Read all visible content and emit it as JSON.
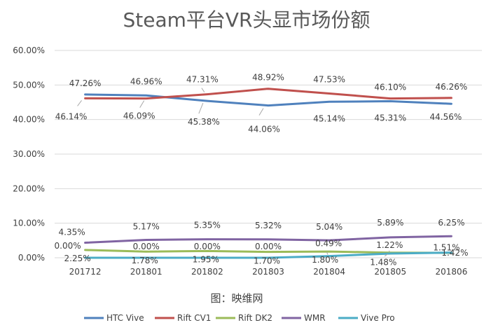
{
  "chart_data": {
    "type": "line",
    "title": "Steam平台VR头显市场份额",
    "source_note": "图：映维网",
    "categories": [
      "201712",
      "201801",
      "201802",
      "201803",
      "201804",
      "201805",
      "201806"
    ],
    "ylim": [
      0,
      60
    ],
    "yticks": [
      "0.00%",
      "10.00%",
      "20.00%",
      "30.00%",
      "40.00%",
      "50.00%",
      "60.00%"
    ],
    "grid": true,
    "legend": "bottom",
    "series": [
      {
        "name": "HTC Vive",
        "color": "#4f81bd",
        "values": [
          47.26,
          46.96,
          45.38,
          44.06,
          45.14,
          45.31,
          44.56
        ],
        "labels": [
          "47.26%",
          "46.96%",
          "45.38%",
          "44.06%",
          "45.14%",
          "45.31%",
          "44.56%"
        ]
      },
      {
        "name": "Rift CV1",
        "color": "#c0504d",
        "values": [
          46.14,
          46.09,
          47.31,
          48.92,
          47.53,
          46.1,
          46.26
        ],
        "labels": [
          "46.14%",
          "46.09%",
          "47.31%",
          "48.92%",
          "47.53%",
          "46.10%",
          "46.26%"
        ]
      },
      {
        "name": "Rift DK2",
        "color": "#9bbb59",
        "values": [
          2.25,
          1.78,
          1.95,
          1.7,
          1.8,
          1.48,
          1.42
        ],
        "labels": [
          "2.25%",
          "1.78%",
          "1.95%",
          "1.70%",
          "1.80%",
          "1.48%",
          "1.42%"
        ]
      },
      {
        "name": "WMR",
        "color": "#8064a2",
        "values": [
          4.35,
          5.17,
          5.35,
          5.32,
          5.04,
          5.89,
          6.25
        ],
        "labels": [
          "4.35%",
          "5.17%",
          "5.35%",
          "5.32%",
          "5.04%",
          "5.89%",
          "6.25%"
        ]
      },
      {
        "name": "Vive Pro",
        "color": "#4bacc6",
        "values": [
          0.0,
          0.0,
          0.0,
          0.0,
          0.49,
          1.22,
          1.51
        ],
        "labels": [
          "0.00%",
          "0.00%",
          "0.00%",
          "0.00%",
          "0.49%",
          "1.22%",
          "1.51%"
        ]
      }
    ]
  }
}
